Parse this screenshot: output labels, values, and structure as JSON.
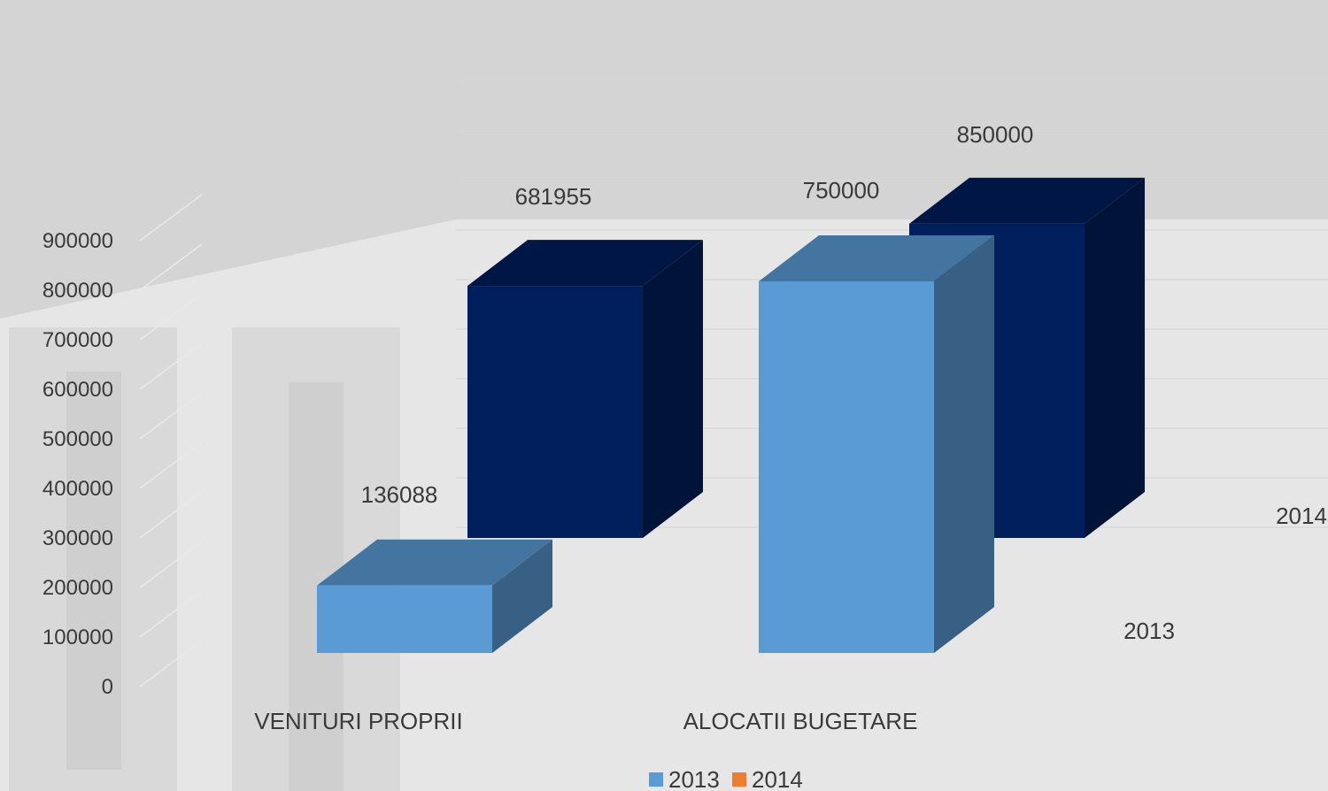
{
  "chart_data": {
    "type": "bar",
    "subtype": "3d-column-depth",
    "categories": [
      "VENITURI PROPRII",
      "ALOCATII BUGETARE"
    ],
    "series": [
      {
        "name": "2013",
        "values": [
          136088,
          750000
        ],
        "color": "#5b9bd5"
      },
      {
        "name": "2014",
        "values": [
          681955,
          850000
        ],
        "color": "#001f5c"
      }
    ],
    "y_ticks": [
      "0",
      "100000",
      "200000",
      "300000",
      "400000",
      "500000",
      "600000",
      "700000",
      "800000",
      "900000"
    ],
    "ylim": [
      0,
      900000
    ],
    "depth_labels": [
      "2013",
      "2014"
    ],
    "legend": {
      "position": "bottom",
      "entries": [
        {
          "label": "2013",
          "color": "#5b9bd5"
        },
        {
          "label": "2014",
          "color": "#ed7d31"
        }
      ]
    },
    "grid": true
  }
}
